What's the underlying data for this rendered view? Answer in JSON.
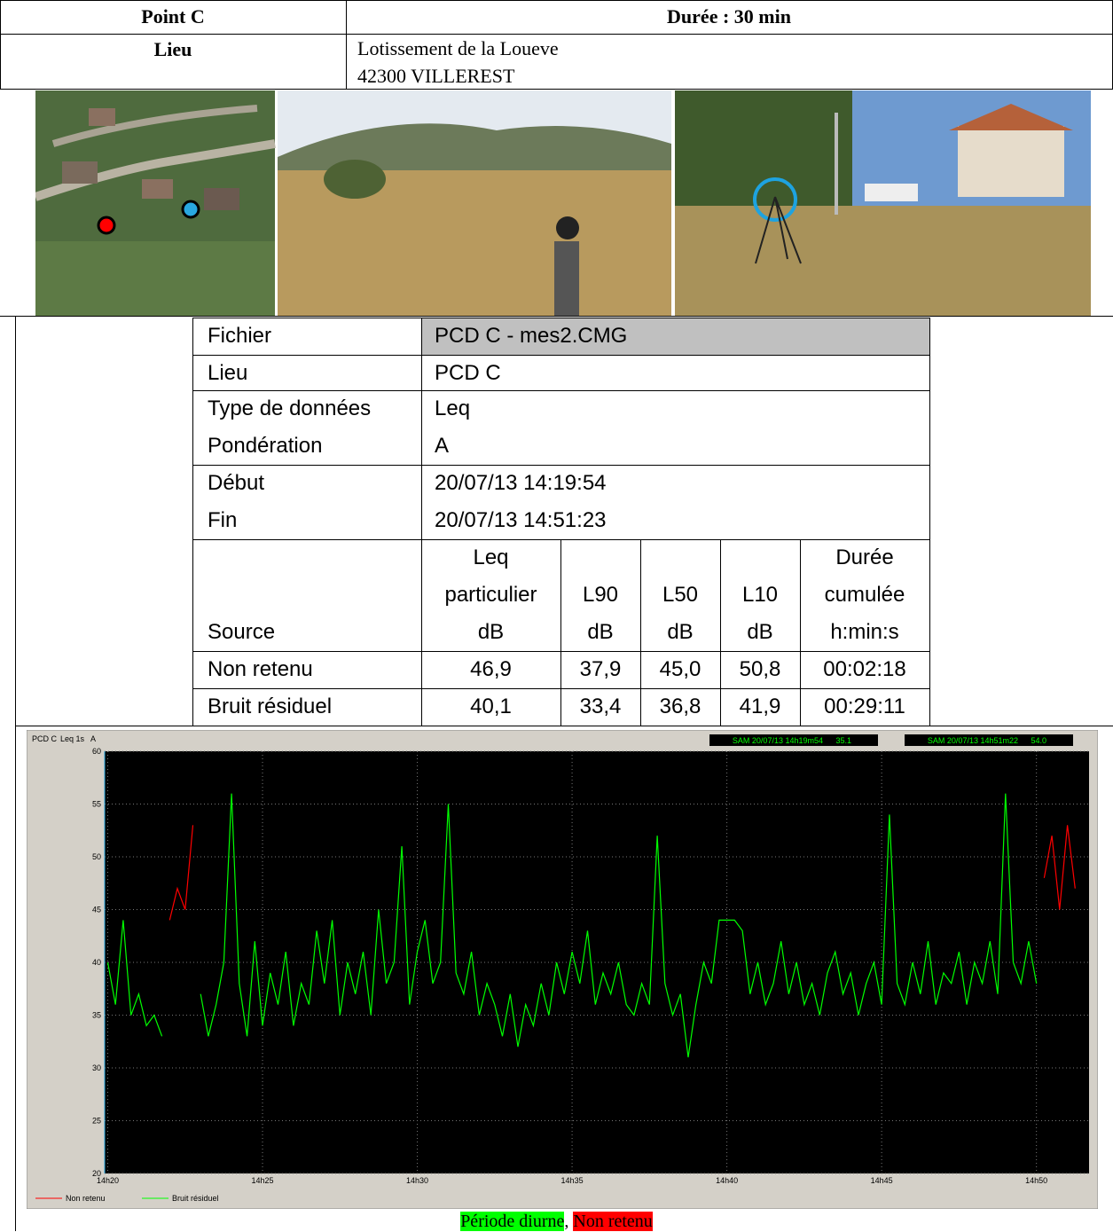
{
  "header": {
    "point": "Point C",
    "duree": "Durée : 30 min",
    "lieu_label": "Lieu",
    "lieu_lines": [
      "Lotissement de la Loueve",
      "42300 VILLEREST"
    ]
  },
  "measurement": {
    "info": [
      [
        "Fichier",
        "PCD C - mes2.CMG"
      ],
      [
        "Lieu",
        "PCD C"
      ],
      [
        "Type de données",
        "Leq"
      ],
      [
        "Pondération",
        "A"
      ],
      [
        "Début",
        "20/07/13 14:19:54"
      ],
      [
        "Fin",
        "20/07/13 14:51:23"
      ]
    ],
    "columns": [
      [
        "Source"
      ],
      [
        "Leq",
        "particulier",
        "dB"
      ],
      [
        "L90",
        "dB"
      ],
      [
        "L50",
        "dB"
      ],
      [
        "L10",
        "dB"
      ],
      [
        "Durée",
        "cumulée",
        "h:min:s"
      ]
    ],
    "rows": [
      [
        "Non retenu",
        "46,9",
        "37,9",
        "45,0",
        "50,8",
        "00:02:18"
      ],
      [
        "Bruit résiduel",
        "40,1",
        "33,4",
        "36,8",
        "41,9",
        "00:29:11"
      ]
    ]
  },
  "chart_data": {
    "type": "line",
    "title": "PCD C",
    "subtitle": "Leq 1s",
    "weighting": "A",
    "cursor_left": {
      "label": "SAM 20/07/13 14h19m54",
      "value": 35.1,
      "unit": "dB"
    },
    "cursor_right": {
      "label": "SAM 20/07/13 14h51m22",
      "value": 54.0,
      "value_label": "54.0",
      "unit": "dB"
    },
    "xlim": [
      19.9,
      51.7
    ],
    "ylim": [
      20,
      60
    ],
    "xticks": [
      {
        "value": 20,
        "label": "14h20"
      },
      {
        "value": 25,
        "label": "14h25"
      },
      {
        "value": 30,
        "label": "14h30"
      },
      {
        "value": 35,
        "label": "14h35"
      },
      {
        "value": 40,
        "label": "14h40"
      },
      {
        "value": 45,
        "label": "14h45"
      },
      {
        "value": 50,
        "label": "14h50"
      }
    ],
    "yticks": [
      20,
      25,
      30,
      35,
      40,
      45,
      50,
      55,
      60
    ],
    "grid": true,
    "legend": "bottom-left",
    "series": [
      {
        "name": "Non retenu",
        "color": "#ff0000",
        "x": [
          22,
          22.25,
          22.5,
          22.75,
          23,
          50.25,
          50.5,
          50.75,
          51,
          51.25
        ],
        "values": [
          44,
          47,
          45,
          53,
          null,
          48,
          52,
          45,
          53,
          47
        ]
      },
      {
        "name": "Bruit résiduel",
        "color": "#00ff00",
        "x": [
          20,
          20.25,
          20.5,
          20.75,
          21,
          21.25,
          21.5,
          21.75,
          22,
          22.25,
          22.5,
          22.75,
          23,
          23.25,
          23.5,
          23.75,
          24,
          24.25,
          24.5,
          24.75,
          25,
          25.25,
          25.5,
          25.75,
          26,
          26.25,
          26.5,
          26.75,
          27,
          27.25,
          27.5,
          27.75,
          28,
          28.25,
          28.5,
          28.75,
          29,
          29.25,
          29.5,
          29.75,
          30,
          30.25,
          30.5,
          30.75,
          31,
          31.25,
          31.5,
          31.75,
          32,
          32.25,
          32.5,
          32.75,
          33,
          33.25,
          33.5,
          33.75,
          34,
          34.25,
          34.5,
          34.75,
          35,
          35.25,
          35.5,
          35.75,
          36,
          36.25,
          36.5,
          36.75,
          37,
          37.25,
          37.5,
          37.75,
          38,
          38.25,
          38.5,
          38.75,
          39,
          39.25,
          39.5,
          39.75,
          40,
          40.25,
          40.5,
          40.75,
          41,
          41.25,
          41.5,
          41.75,
          42,
          42.25,
          42.5,
          42.75,
          43,
          43.25,
          43.5,
          43.75,
          44,
          44.25,
          44.5,
          44.75,
          45,
          45.25,
          45.5,
          45.75,
          46,
          46.25,
          46.5,
          46.75,
          47,
          47.25,
          47.5,
          47.75,
          48,
          48.25,
          48.5,
          48.75,
          49,
          49.25,
          49.5,
          49.75,
          50
        ],
        "values": [
          40,
          36,
          44,
          35,
          37,
          34,
          35,
          33,
          null,
          null,
          null,
          null,
          37,
          33,
          36,
          40,
          56,
          38,
          33,
          42,
          34,
          39,
          36,
          41,
          34,
          38,
          36,
          43,
          38,
          44,
          35,
          40,
          37,
          41,
          35,
          45,
          38,
          40,
          51,
          36,
          41,
          44,
          38,
          40,
          55,
          39,
          37,
          41,
          35,
          38,
          36,
          33,
          37,
          32,
          36,
          34,
          38,
          35,
          40,
          37,
          41,
          38,
          43,
          36,
          39,
          37,
          40,
          36,
          35,
          38,
          36,
          52,
          38,
          35,
          37,
          31,
          36,
          40,
          38,
          44,
          44,
          44,
          43,
          37,
          40,
          36,
          38,
          42,
          37,
          40,
          36,
          38,
          35,
          39,
          41,
          37,
          39,
          35,
          38,
          40,
          36,
          54,
          38,
          36,
          40,
          37,
          42,
          36,
          39,
          38,
          41,
          36,
          40,
          38,
          42,
          37,
          56,
          40,
          38,
          42,
          38
        ]
      }
    ]
  },
  "caption": {
    "periode": "Période diurne",
    "separator": ",",
    "non_retenu": "Non retenu"
  }
}
